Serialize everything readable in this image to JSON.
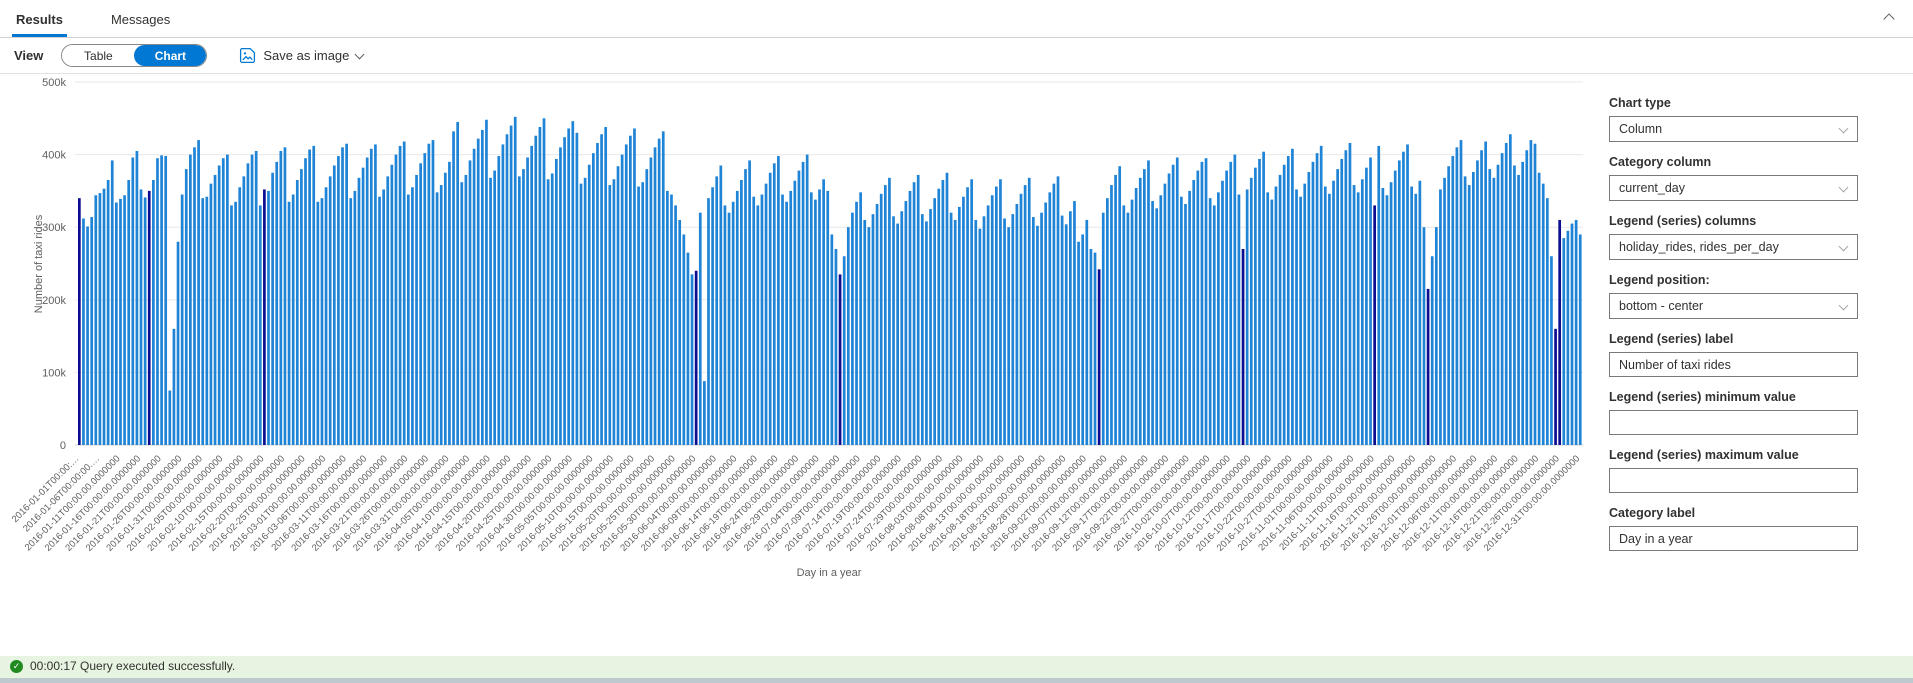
{
  "tabs": {
    "results": "Results",
    "messages": "Messages"
  },
  "toolbar": {
    "view_label": "View",
    "table_label": "Table",
    "chart_label": "Chart",
    "save_as_image": "Save as image"
  },
  "settings_panel": {
    "chart_type": {
      "label": "Chart type",
      "value": "Column"
    },
    "category_column": {
      "label": "Category column",
      "value": "current_day"
    },
    "legend_columns": {
      "label": "Legend (series) columns",
      "value": "holiday_rides, rides_per_day"
    },
    "legend_position": {
      "label": "Legend position:",
      "value": "bottom - center"
    },
    "legend_label": {
      "label": "Legend (series) label",
      "value": "Number of taxi rides"
    },
    "legend_min": {
      "label": "Legend (series) minimum value",
      "value": ""
    },
    "legend_max": {
      "label": "Legend (series) maximum value",
      "value": ""
    },
    "category_label": {
      "label": "Category label",
      "value": "Day in a year"
    }
  },
  "status_bar": {
    "text": "00:00:17 Query executed successfully."
  },
  "colors": {
    "accent": "#0078d4",
    "bar_blue": "#1f83d6",
    "bar_navy": "#0d0d92",
    "success_green": "#218a21",
    "status_bg": "#e7f4e1",
    "axis_text": "#605e5c",
    "gridline": "#e8e8e8"
  },
  "chart_data": {
    "type": "bar",
    "title": "",
    "xlabel": "Day in a year",
    "ylabel": "Number of taxi rides",
    "ylim": [
      0,
      500000
    ],
    "unit": "thousands_of_rides",
    "grid": true,
    "legend_position": "bottom-center",
    "ytick_labels": [
      "500k",
      "400k",
      "300k",
      "200k",
      "100k",
      "0"
    ],
    "x_tick_labels": [
      "2016-01-01T00:00:…",
      "2016-01-06T00:00:00.…",
      "2016-01-11T00:00:00.0000000",
      "2016-01-16T00:00:00.0000000",
      "2016-01-21T00:00:00.0000000",
      "2016-01-26T00:00:00.0000000",
      "2016-01-31T00:00:00.0000000",
      "2016-02-05T00:00:00.0000000",
      "2016-02-10T00:00:00.0000000",
      "2016-02-15T00:00:00.0000000",
      "2016-02-20T00:00:00.0000000",
      "2016-02-25T00:00:00.0000000",
      "2016-03-01T00:00:00.0000000",
      "2016-03-06T00:00:00.0000000",
      "2016-03-11T00:00:00.0000000",
      "2016-03-16T00:00:00.0000000",
      "2016-03-21T00:00:00.0000000",
      "2016-03-26T00:00:00.0000000",
      "2016-03-31T00:00:00.0000000",
      "2016-04-05T00:00:00.0000000",
      "2016-04-10T00:00:00.0000000",
      "2016-04-15T00:00:00.0000000",
      "2016-04-20T00:00:00.0000000",
      "2016-04-25T00:00:00.0000000",
      "2016-04-30T00:00:00.0000000",
      "2016-05-05T00:00:00.0000000",
      "2016-05-10T00:00:00.0000000",
      "2016-05-15T00:00:00.0000000",
      "2016-05-20T00:00:00.0000000",
      "2016-05-25T00:00:00.0000000",
      "2016-05-30T00:00:00.0000000",
      "2016-06-04T00:00:00.0000000",
      "2016-06-09T00:00:00.0000000",
      "2016-06-14T00:00:00.0000000",
      "2016-06-19T00:00:00.0000000",
      "2016-06-24T00:00:00.0000000",
      "2016-06-29T00:00:00.0000000",
      "2016-07-04T00:00:00.0000000",
      "2016-07-09T00:00:00.0000000",
      "2016-07-14T00:00:00.0000000",
      "2016-07-19T00:00:00.0000000",
      "2016-07-24T00:00:00.0000000",
      "2016-07-29T00:00:00.0000000",
      "2016-08-03T00:00:00.0000000",
      "2016-08-08T00:00:00.0000000",
      "2016-08-13T00:00:00.0000000",
      "2016-08-18T00:00:00.0000000",
      "2016-08-23T00:00:00.0000000",
      "2016-08-28T00:00:00.0000000",
      "2016-09-02T00:00:00.0000000",
      "2016-09-07T00:00:00.0000000",
      "2016-09-12T00:00:00.0000000",
      "2016-09-17T00:00:00.0000000",
      "2016-09-22T00:00:00.0000000",
      "2016-09-27T00:00:00.0000000",
      "2016-10-02T00:00:00.0000000",
      "2016-10-07T00:00:00.0000000",
      "2016-10-12T00:00:00.0000000",
      "2016-10-17T00:00:00.0000000",
      "2016-10-22T00:00:00.0000000",
      "2016-10-27T00:00:00.0000000",
      "2016-11-01T00:00:00.0000000",
      "2016-11-06T00:00:00.0000000",
      "2016-11-11T00:00:00.0000000",
      "2016-11-16T00:00:00.0000000",
      "2016-11-21T00:00:00.0000000",
      "2016-11-26T00:00:00.0000000",
      "2016-12-01T00:00:00.0000000",
      "2016-12-06T00:00:00.0000000",
      "2016-12-11T00:00:00.0000000",
      "2016-12-16T00:00:00.0000000",
      "2016-12-21T00:00:00.0000000",
      "2016-12-26T00:00:00.0000000",
      "2016-12-31T00:00:00.0000000"
    ],
    "legend": [
      {
        "name": "rides_per_day",
        "color": "#1f83d6"
      },
      {
        "name": "holiday_rides",
        "color": "#0d0d92"
      }
    ],
    "series": [
      {
        "name": "rides_per_day",
        "values_in_thousands": [
          340,
          312,
          301,
          314,
          344,
          347,
          353,
          365,
          392,
          334,
          339,
          344,
          365,
          396,
          405,
          352,
          341,
          350,
          365,
          395,
          399,
          398,
          75,
          160,
          280,
          345,
          380,
          400,
          410,
          420,
          340,
          342,
          360,
          372,
          385,
          395,
          400,
          330,
          335,
          355,
          370,
          388,
          400,
          405,
          330,
          352,
          350,
          375,
          390,
          405,
          410,
          335,
          345,
          365,
          380,
          395,
          407,
          412,
          335,
          340,
          355,
          370,
          385,
          398,
          410,
          415,
          340,
          350,
          368,
          382,
          396,
          408,
          414,
          342,
          352,
          370,
          386,
          400,
          412,
          418,
          345,
          355,
          372,
          388,
          402,
          415,
          420,
          348,
          358,
          375,
          390,
          432,
          445,
          362,
          372,
          392,
          408,
          422,
          434,
          448,
          368,
          378,
          398,
          414,
          428,
          440,
          452,
          370,
          380,
          396,
          412,
          426,
          438,
          450,
          366,
          374,
          394,
          410,
          424,
          436,
          446,
          430,
          360,
          368,
          386,
          402,
          416,
          428,
          438,
          358,
          366,
          384,
          400,
          414,
          426,
          436,
          356,
          362,
          380,
          396,
          410,
          422,
          432,
          350,
          345,
          330,
          310,
          290,
          265,
          235,
          240,
          320,
          88,
          340,
          355,
          370,
          385,
          330,
          320,
          335,
          350,
          365,
          380,
          392,
          342,
          330,
          345,
          360,
          375,
          388,
          398,
          345,
          335,
          350,
          364,
          378,
          390,
          400,
          348,
          338,
          352,
          366,
          350,
          290,
          270,
          235,
          260,
          300,
          320,
          335,
          348,
          310,
          300,
          318,
          332,
          346,
          358,
          368,
          315,
          305,
          322,
          336,
          350,
          362,
          372,
          318,
          308,
          325,
          340,
          353,
          365,
          375,
          320,
          310,
          328,
          342,
          355,
          366,
          310,
          298,
          315,
          330,
          344,
          356,
          366,
          312,
          300,
          318,
          332,
          346,
          358,
          368,
          314,
          302,
          320,
          334,
          348,
          360,
          370,
          316,
          304,
          322,
          336,
          280,
          290,
          310,
          270,
          265,
          242,
          320,
          340,
          358,
          372,
          384,
          330,
          320,
          338,
          354,
          368,
          380,
          392,
          336,
          326,
          344,
          360,
          374,
          386,
          396,
          342,
          332,
          350,
          365,
          378,
          390,
          395,
          340,
          330,
          348,
          364,
          378,
          390,
          400,
          345,
          270,
          352,
          368,
          382,
          394,
          404,
          348,
          338,
          356,
          372,
          386,
          398,
          408,
          352,
          342,
          360,
          376,
          390,
          402,
          412,
          356,
          346,
          364,
          380,
          394,
          406,
          416,
          358,
          348,
          366,
          382,
          396,
          330,
          412,
          354,
          344,
          362,
          378,
          392,
          404,
          414,
          356,
          346,
          364,
          300,
          215,
          260,
          300,
          352,
          368,
          384,
          398,
          410,
          420,
          370,
          358,
          376,
          392,
          406,
          418,
          380,
          368,
          386,
          402,
          416,
          428,
          385,
          372,
          390,
          406,
          420,
          415,
          375,
          360,
          340,
          260,
          160,
          310,
          285,
          295,
          305,
          310,
          290
        ]
      },
      {
        "name": "holiday_rides",
        "note": "bars at these 0-based day indices are drawn navy",
        "holiday_day_indices": [
          0,
          17,
          45,
          150,
          185,
          248,
          283,
          315,
          328,
          359,
          360
        ]
      }
    ]
  }
}
